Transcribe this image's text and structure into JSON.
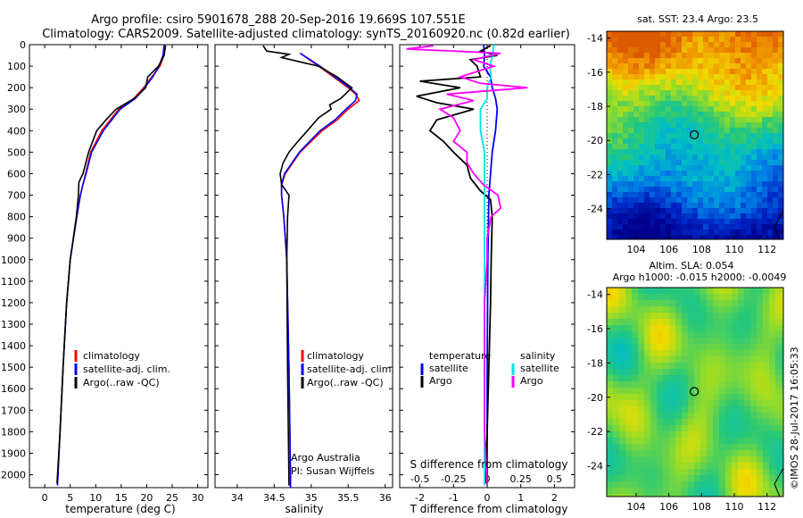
{
  "header": {
    "title_line1": "Argo profile: csiro 5901678_288 20-Sep-2016 19.669S 107.551E",
    "title_line2": "Climatology: CARS2009. Satellite-adjusted climatology: synTS_20160920.nc (0.82d earlier)"
  },
  "colors": {
    "climatology": "#ff0000",
    "satellite": "#0000ff",
    "argo": "#000000",
    "sal_sat": "#00e5e5",
    "sal_argo": "#ff00ff"
  },
  "chart_data": [
    {
      "type": "line",
      "name": "temperature",
      "xlabel": "temperature (deg C)",
      "ylabel": "",
      "xlim": [
        -3,
        32
      ],
      "ylim": [
        2060,
        0
      ],
      "x_ticks": [
        "0",
        "5",
        "10",
        "15",
        "20",
        "25",
        "30"
      ],
      "y_ticks": [
        "0",
        "100",
        "200",
        "300",
        "400",
        "500",
        "600",
        "700",
        "800",
        "900",
        "1000",
        "1100",
        "1200",
        "1300",
        "1400",
        "1500",
        "1600",
        "1700",
        "1800",
        "1900",
        "2000"
      ],
      "legend": [
        "climatology",
        "satellite-adj. clim.",
        "Argo(..raw -QC)"
      ],
      "series": [
        {
          "name": "climatology",
          "color": "#ff0000",
          "depth": [
            0,
            50,
            100,
            150,
            200,
            250,
            300,
            400,
            500,
            600,
            650,
            700,
            800,
            1000,
            1200,
            1500,
            1800,
            2050
          ],
          "values": [
            23.6,
            23.4,
            22.6,
            21.0,
            19.4,
            17.5,
            14.5,
            11.2,
            9.0,
            8.0,
            7.5,
            7.0,
            6.3,
            5.0,
            4.3,
            3.6,
            3.0,
            2.5
          ]
        },
        {
          "name": "satellite-adj. clim.",
          "color": "#0000ff",
          "depth": [
            0,
            50,
            100,
            150,
            200,
            250,
            300,
            400,
            500,
            600,
            650,
            700,
            800,
            1000,
            1200,
            1500,
            1800,
            2050
          ],
          "values": [
            23.4,
            23.2,
            22.4,
            21.2,
            19.6,
            17.8,
            14.8,
            11.5,
            9.2,
            8.1,
            7.5,
            7.0,
            6.3,
            5.0,
            4.3,
            3.6,
            3.0,
            2.5
          ]
        },
        {
          "name": "Argo(..raw -QC)",
          "color": "#000000",
          "depth": [
            5,
            50,
            100,
            150,
            200,
            250,
            300,
            350,
            400,
            500,
            600,
            640,
            700,
            800,
            1000,
            1200,
            1500,
            1800,
            2040
          ],
          "values": [
            23.7,
            23.4,
            22.3,
            20.2,
            19.8,
            17.6,
            14.0,
            12.0,
            10.2,
            8.6,
            7.5,
            6.7,
            6.6,
            6.2,
            5.0,
            4.3,
            3.6,
            3.0,
            2.4
          ]
        }
      ]
    },
    {
      "type": "line",
      "name": "salinity",
      "xlabel": "salinity",
      "ylabel": "",
      "xlim": [
        33.7,
        36.1
      ],
      "ylim": [
        2060,
        0
      ],
      "x_ticks": [
        "34",
        "34.5",
        "35",
        "35.5",
        "36"
      ],
      "legend": [
        "climatology",
        "satellite-adj. clim.",
        "Argo(..raw -QC)"
      ],
      "annotations": [
        "Argo Australia",
        "PI: Susan Wijffels"
      ],
      "series": [
        {
          "name": "climatology",
          "color": "#ff0000",
          "depth": [
            40,
            100,
            150,
            200,
            230,
            260,
            300,
            350,
            400,
            450,
            500,
            550,
            600,
            650,
            700,
            800,
            1000,
            1500,
            2000,
            2060
          ],
          "values": [
            34.85,
            35.1,
            35.3,
            35.5,
            35.6,
            35.65,
            35.5,
            35.35,
            35.15,
            35.0,
            34.85,
            34.75,
            34.65,
            34.6,
            34.6,
            34.63,
            34.67,
            34.7,
            34.72,
            34.72
          ]
        },
        {
          "name": "satellite-adj. clim.",
          "color": "#0000ff",
          "depth": [
            40,
            100,
            150,
            200,
            230,
            260,
            300,
            350,
            400,
            450,
            500,
            550,
            600,
            650,
            700,
            800,
            1000,
            1500,
            2000,
            2060
          ],
          "values": [
            34.85,
            35.12,
            35.32,
            35.52,
            35.62,
            35.6,
            35.47,
            35.32,
            35.12,
            34.98,
            34.84,
            34.74,
            34.64,
            34.6,
            34.6,
            34.63,
            34.67,
            34.7,
            34.72,
            34.72
          ]
        },
        {
          "name": "Argo(..raw -QC)",
          "color": "#000000",
          "depth": [
            5,
            30,
            45,
            60,
            80,
            100,
            150,
            200,
            250,
            280,
            300,
            340,
            400,
            450,
            500,
            550,
            600,
            650,
            700,
            800,
            1000,
            1500,
            2050
          ],
          "values": [
            34.35,
            34.4,
            34.7,
            34.6,
            34.85,
            35.1,
            35.35,
            35.55,
            35.4,
            35.25,
            35.27,
            35.1,
            34.95,
            34.82,
            34.7,
            34.62,
            34.58,
            34.6,
            34.7,
            34.68,
            34.67,
            34.68,
            34.7
          ]
        }
      ]
    },
    {
      "type": "line",
      "name": "difference from climatology",
      "xlabel": "T difference from climatology",
      "xlabel_top": "S difference from climatology",
      "xlim": [
        -2.6,
        2.6
      ],
      "ylim": [
        2060,
        0
      ],
      "t_ticks": [
        "-2",
        "-1",
        "0",
        "1",
        "2"
      ],
      "s_ticks": [
        "-0.5",
        "-0.25",
        "0",
        "0.25",
        "0.5"
      ],
      "legend": {
        "temperature_header": "temperature",
        "salinity_header": "salinity",
        "temperature": [
          "satellite",
          "Argo"
        ],
        "salinity": [
          "satellite",
          "Argo"
        ]
      },
      "series": [
        {
          "name": "temperature satellite",
          "color": "#0000ff",
          "depth": [
            0,
            50,
            100,
            150,
            200,
            250,
            300,
            400,
            500,
            700,
            1000,
            1500,
            2050
          ],
          "values": [
            -0.1,
            -0.08,
            -0.1,
            0.1,
            0.15,
            0.25,
            0.3,
            0.25,
            0.15,
            0.05,
            0.02,
            0.0,
            0.0
          ]
        },
        {
          "name": "temperature Argo",
          "color": "#000000",
          "depth": [
            5,
            30,
            50,
            70,
            100,
            150,
            170,
            200,
            240,
            270,
            300,
            350,
            400,
            450,
            500,
            560,
            620,
            680,
            720,
            800,
            1000,
            1200,
            1500,
            1800,
            2040
          ],
          "values": [
            0.1,
            -0.2,
            0.3,
            -0.5,
            -0.3,
            -0.2,
            -2.0,
            -0.8,
            -2.1,
            -1.5,
            -0.4,
            -1.5,
            -1.7,
            -1.3,
            -1.0,
            -0.6,
            -0.5,
            -0.2,
            0.1,
            0.15,
            0.12,
            0.1,
            0.05,
            0.0,
            -0.05
          ]
        },
        {
          "name": "salinity satellite",
          "color": "#00e5e5",
          "depth": [
            0,
            50,
            100,
            150,
            200,
            250,
            300,
            400,
            500,
            600,
            800,
            1000,
            1500,
            2050
          ],
          "values": [
            0.05,
            0.04,
            0.02,
            0.03,
            0.0,
            0.0,
            -0.05,
            -0.05,
            -0.02,
            -0.02,
            -0.02,
            -0.02,
            -0.02,
            -0.02
          ]
        },
        {
          "name": "salinity Argo",
          "color": "#ff00ff",
          "depth": [
            5,
            20,
            40,
            70,
            100,
            150,
            180,
            200,
            230,
            260,
            300,
            340,
            400,
            450,
            500,
            550,
            600,
            650,
            700,
            760,
            800,
            900,
            1000,
            1200,
            1500,
            1800,
            2050
          ],
          "values": [
            -0.4,
            -0.6,
            0.1,
            -0.1,
            0.05,
            -0.2,
            -0.05,
            0.3,
            -0.3,
            -0.1,
            -0.35,
            -0.25,
            -0.2,
            -0.25,
            -0.15,
            -0.15,
            -0.1,
            -0.03,
            0.08,
            0.1,
            0.03,
            0.0,
            0.0,
            -0.02,
            -0.02,
            -0.02,
            0.0
          ]
        }
      ]
    },
    {
      "type": "heatmap",
      "name": "satellite SST map",
      "title": "sat. SST: 23.4  Argo: 23.5",
      "x_ticks": [
        "104",
        "106",
        "108",
        "110",
        "112"
      ],
      "y_ticks": [
        "-14",
        "-16",
        "-18",
        "-20",
        "-22",
        "-24"
      ],
      "xlim": [
        102.2,
        113.0
      ],
      "ylim": [
        -25.8,
        -13.6
      ],
      "marker": {
        "lon": 107.551,
        "lat": -19.669
      }
    },
    {
      "type": "heatmap",
      "name": "altimetry SLA map",
      "title_line1": "Altim. SLA: 0.054",
      "title_line2": "Argo h1000: -0.015  h2000: -0.0049",
      "x_ticks": [
        "104",
        "106",
        "108",
        "110",
        "112"
      ],
      "y_ticks": [
        "-14",
        "-16",
        "-18",
        "-20",
        "-22",
        "-24"
      ],
      "xlim": [
        102.2,
        113.0
      ],
      "ylim": [
        -25.8,
        -13.6
      ],
      "marker": {
        "lon": 107.551,
        "lat": -19.669
      }
    }
  ],
  "footer": {
    "credit": "©IMOS 28-Jul-2017 16:05:33"
  }
}
